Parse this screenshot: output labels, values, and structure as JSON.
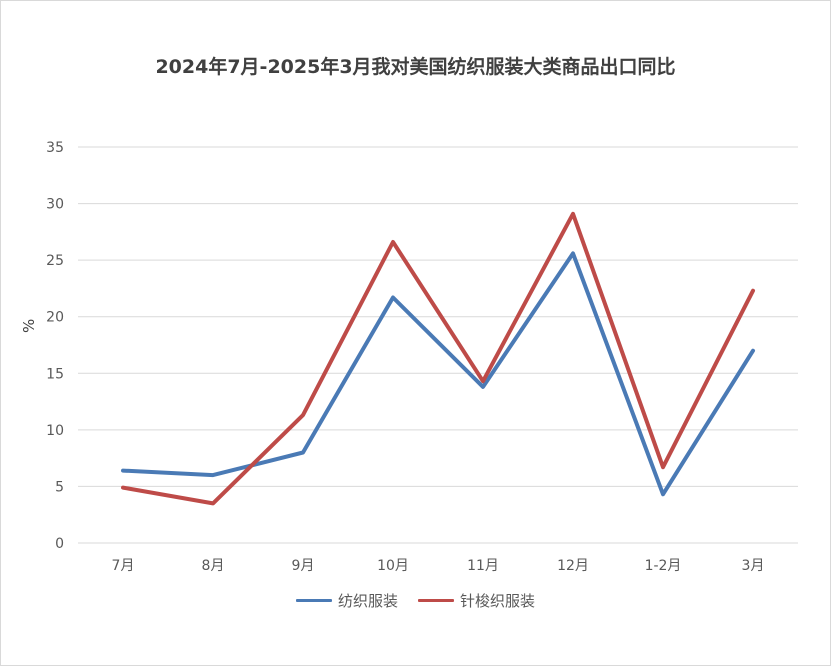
{
  "chart_data": {
    "type": "line",
    "title": "2024年7月-2025年3月我对美国纺织服装大类商品出口同比",
    "xlabel": "",
    "ylabel": "%",
    "categories": [
      "7月",
      "8月",
      "9月",
      "10月",
      "11月",
      "12月",
      "1-2月",
      "3月"
    ],
    "ylim": [
      0,
      35
    ],
    "yticks": [
      0,
      5,
      10,
      15,
      20,
      25,
      30,
      35
    ],
    "grid": true,
    "legend_position": "bottom",
    "series": [
      {
        "name": "纺织服装",
        "color": "#4a7ab5",
        "values": [
          6.4,
          6.0,
          8.0,
          21.7,
          13.8,
          25.6,
          4.3,
          17.0
        ]
      },
      {
        "name": "针梭织服装",
        "color": "#be4b48",
        "values": [
          4.9,
          3.5,
          11.3,
          26.6,
          14.3,
          29.1,
          6.7,
          22.3
        ]
      }
    ]
  }
}
